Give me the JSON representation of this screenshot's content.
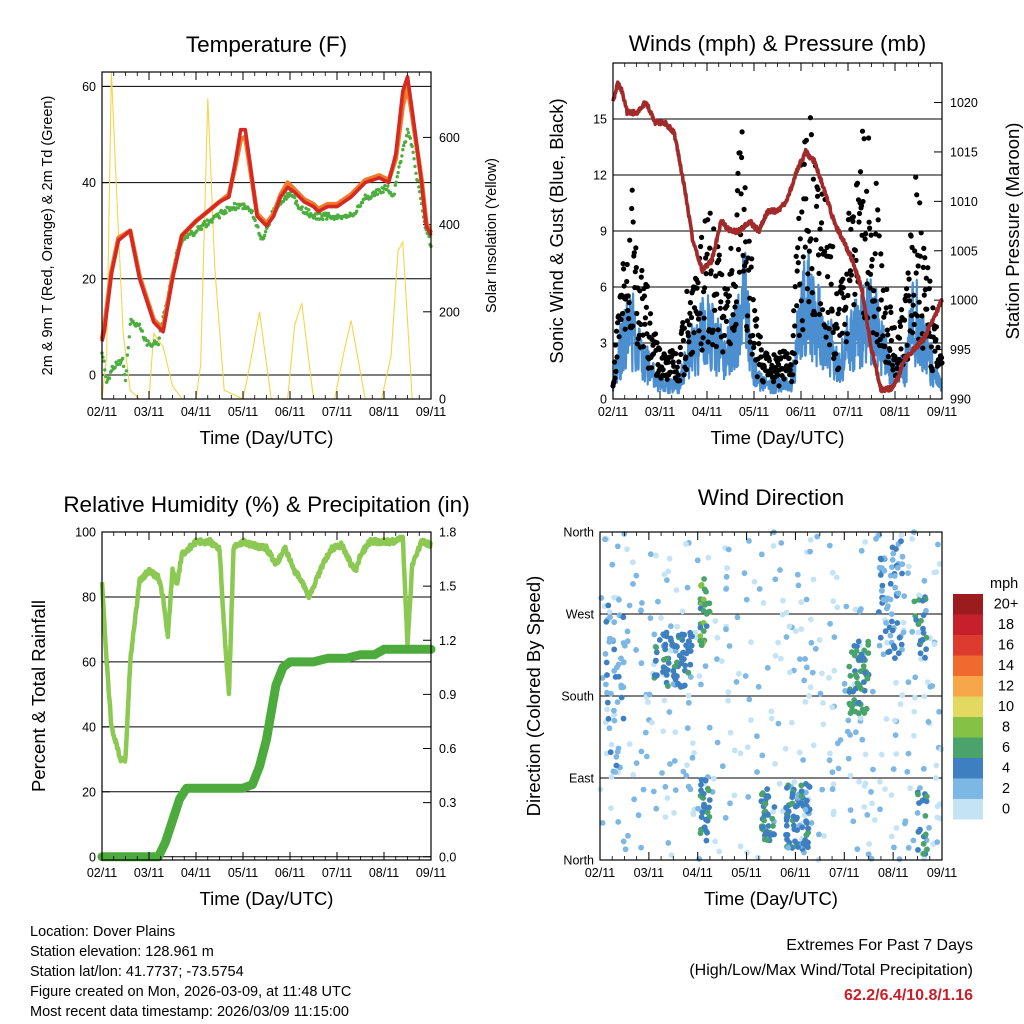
{
  "chart_data": [
    {
      "type": "line",
      "title": "Temperature (F)",
      "xlabel": "Time (Day/UTC)",
      "ylabel": "2m & 9m T (Red, Orange) & 2m Td (Green)",
      "y2label": "Solar Insolation (Yellow)",
      "xticks": [
        "02/11",
        "03/11",
        "04/11",
        "05/11",
        "06/11",
        "07/11",
        "08/11",
        "09/11"
      ],
      "ylim": [
        -5,
        63
      ],
      "yticks": [
        0,
        20,
        40,
        60
      ],
      "y2lim": [
        0,
        750
      ],
      "y2ticks": [
        0,
        200,
        400,
        600
      ],
      "series": [
        {
          "name": "2m T",
          "color": "#d42a23",
          "x": [
            0,
            0.05,
            0.2,
            0.35,
            0.6,
            0.8,
            1.1,
            1.3,
            1.5,
            1.7,
            2,
            2.25,
            2.5,
            2.7,
            2.85,
            2.95,
            3.05,
            3.15,
            3.3,
            3.5,
            3.65,
            3.8,
            3.95,
            4.1,
            4.3,
            4.5,
            4.6,
            4.8,
            5,
            5.3,
            5.6,
            5.9,
            6.1,
            6.25,
            6.4,
            6.5,
            6.6,
            6.8,
            6.9,
            7
          ],
          "y": [
            7,
            9,
            21,
            28,
            30,
            20,
            11,
            9,
            20,
            29,
            32,
            34,
            36,
            37,
            45,
            51,
            51,
            44,
            33,
            31,
            33,
            37,
            39,
            38,
            36,
            35,
            34,
            35,
            35,
            37,
            40,
            41,
            40,
            46,
            59,
            62,
            55,
            40,
            31,
            29
          ]
        },
        {
          "name": "9m T",
          "color": "#f07a28",
          "x": [
            0,
            0.05,
            0.2,
            0.35,
            0.6,
            0.8,
            1.1,
            1.3,
            1.5,
            1.7,
            2,
            2.25,
            2.5,
            2.7,
            2.85,
            2.95,
            3.05,
            3.15,
            3.3,
            3.5,
            3.65,
            3.8,
            3.95,
            4.1,
            4.3,
            4.5,
            4.6,
            4.8,
            5,
            5.3,
            5.6,
            5.9,
            6.1,
            6.25,
            6.4,
            6.5,
            6.6,
            6.8,
            6.9,
            7
          ],
          "y": [
            7.5,
            10,
            21.5,
            28.5,
            30,
            20.5,
            11.5,
            9.5,
            20.5,
            29,
            32,
            34,
            36,
            37.5,
            44,
            49,
            49.5,
            43,
            33.5,
            31.5,
            33.5,
            37.5,
            40,
            38.5,
            36.5,
            35.5,
            34.5,
            35.5,
            35.5,
            37.5,
            40.5,
            41.5,
            40.5,
            45,
            56,
            60,
            54,
            40.5,
            31.5,
            29.5
          ]
        },
        {
          "name": "2m Td",
          "color": "#4cae3e",
          "x": [
            0,
            0.1,
            0.25,
            0.45,
            0.5,
            0.6,
            0.8,
            1,
            1.2,
            1.4,
            1.6,
            1.75,
            2,
            2.3,
            2.6,
            2.8,
            3,
            3.2,
            3.4,
            3.6,
            3.8,
            4,
            4.2,
            4.5,
            4.8,
            5,
            5.3,
            5.6,
            5.9,
            6.05,
            6.2,
            6.35,
            6.5,
            6.6,
            6.75,
            6.9,
            7
          ],
          "y": [
            5,
            -2,
            2,
            3,
            -1,
            11,
            10,
            6,
            7,
            16,
            26,
            28,
            30,
            32,
            34,
            35,
            35,
            34,
            28,
            33,
            36,
            38,
            35,
            33,
            33,
            33,
            33,
            37,
            38,
            39,
            37,
            44,
            51,
            47,
            38,
            30,
            27
          ]
        },
        {
          "name": "Solar Insolation",
          "color": "#f7d448",
          "axis": "y2",
          "x": [
            0,
            0.1,
            0.2,
            0.3,
            0.45,
            0.6,
            0.8,
            1,
            1.1,
            1.3,
            1.5,
            1.7,
            2,
            2.1,
            2.25,
            2.4,
            2.6,
            3,
            3.15,
            3.35,
            3.6,
            3.95,
            4.1,
            4.25,
            4.5,
            4.95,
            5.15,
            5.3,
            5.6,
            5.95,
            6.15,
            6.3,
            6.4,
            6.5,
            6.6,
            7
          ],
          "y": [
            0,
            100,
            750,
            500,
            150,
            20,
            0,
            0,
            150,
            120,
            30,
            0,
            0,
            80,
            690,
            300,
            20,
            0,
            80,
            200,
            0,
            0,
            170,
            220,
            0,
            0,
            110,
            180,
            0,
            0,
            100,
            340,
            360,
            180,
            0,
            0
          ]
        }
      ]
    },
    {
      "type": "line",
      "title": "Winds (mph) & Pressure (mb)",
      "xlabel": "Time (Day/UTC)",
      "ylabel": "Sonic Wind & Gust (Blue, Black)",
      "y2label": "Station Pressure (Maroon)",
      "xticks": [
        "02/11",
        "03/11",
        "04/11",
        "05/11",
        "06/11",
        "07/11",
        "08/11",
        "09/11"
      ],
      "ylim": [
        0,
        18
      ],
      "yticks": [
        0,
        3,
        6,
        9,
        12,
        15
      ],
      "y2lim": [
        990,
        1024
      ],
      "y2ticks": [
        990,
        995,
        1000,
        1005,
        1010,
        1015,
        1020
      ],
      "series": [
        {
          "name": "Station Pressure",
          "color": "#a12a2b",
          "axis": "y2",
          "x": [
            0,
            0.1,
            0.2,
            0.3,
            0.5,
            0.7,
            0.9,
            1.1,
            1.3,
            1.5,
            1.7,
            1.9,
            2.1,
            2.3,
            2.5,
            2.7,
            2.9,
            3.1,
            3.3,
            3.5,
            3.7,
            3.9,
            4.1,
            4.3,
            4.5,
            4.7,
            4.9,
            5.1,
            5.3,
            5.5,
            5.7,
            5.9,
            6.05,
            6.2,
            6.4,
            6.6,
            6.8,
            7
          ],
          "y": [
            1020,
            1022,
            1021,
            1019,
            1019,
            1020,
            1018,
            1018,
            1017,
            1012,
            1006,
            1003,
            1004,
            1008,
            1007,
            1007,
            1008,
            1007,
            1009,
            1009,
            1010,
            1013,
            1015,
            1014,
            1011,
            1008,
            1006,
            1004,
            1001,
            995,
            991,
            991,
            992,
            994,
            995,
            996,
            998,
            1000
          ]
        },
        {
          "name": "Sonic Wind",
          "color": "#4b8fd0",
          "x": [
            0,
            0.2,
            0.4,
            0.6,
            0.8,
            1,
            1.2,
            1.4,
            1.6,
            1.8,
            2,
            2.2,
            2.4,
            2.6,
            2.8,
            3,
            3.2,
            3.4,
            3.6,
            3.8,
            4,
            4.2,
            4.4,
            4.6,
            4.8,
            5,
            5.2,
            5.4,
            5.6,
            5.8,
            6,
            6.2,
            6.4,
            6.6,
            6.8,
            7
          ],
          "y": [
            1,
            4,
            5,
            3,
            2,
            1,
            1,
            1,
            3,
            4,
            5,
            4,
            3,
            5,
            7,
            2,
            1,
            1,
            1,
            1,
            6,
            7,
            5,
            4,
            2,
            4,
            5,
            6,
            5,
            3,
            2,
            2,
            6,
            4,
            2,
            1
          ]
        },
        {
          "name": "Gust",
          "color": "#000000",
          "x": [
            0,
            0.2,
            0.4,
            0.6,
            0.8,
            1,
            1.2,
            1.4,
            1.6,
            1.8,
            2,
            2.2,
            2.4,
            2.6,
            2.8,
            3,
            3.2,
            3.4,
            3.6,
            3.8,
            4,
            4.2,
            4.4,
            4.6,
            4.8,
            5,
            5.2,
            5.4,
            5.6,
            5.8,
            6,
            6.2,
            6.4,
            6.6,
            6.8,
            7
          ],
          "y": [
            2,
            7,
            9,
            6,
            4,
            2,
            2,
            2,
            5,
            6,
            8,
            7,
            6,
            9,
            12,
            4,
            2,
            2,
            2,
            2,
            10,
            12,
            9,
            8,
            4,
            8,
            10,
            12,
            9,
            5,
            3,
            4,
            10,
            7,
            4,
            2
          ]
        }
      ]
    },
    {
      "type": "line",
      "title": "Relative Humidity (%) & Precipitation (in)",
      "xlabel": "Time (Day/UTC)",
      "ylabel": "Percent & Total Rainfall",
      "xticks": [
        "02/11",
        "03/11",
        "04/11",
        "05/11",
        "06/11",
        "07/11",
        "08/11",
        "09/11"
      ],
      "ylim": [
        -1,
        100
      ],
      "yticks": [
        0,
        20,
        40,
        60,
        80,
        100
      ],
      "y2lim": [
        -0.018,
        1.8
      ],
      "y2ticks": [
        "0.0",
        "0.3",
        "0.6",
        "0.9",
        "1.2",
        "1.5",
        "1.8"
      ],
      "series": [
        {
          "name": "Relative Humidity",
          "color": "#8cc952",
          "x": [
            0,
            0.1,
            0.2,
            0.3,
            0.4,
            0.5,
            0.6,
            0.8,
            1,
            1.2,
            1.3,
            1.4,
            1.5,
            1.6,
            1.7,
            2,
            2.3,
            2.5,
            2.6,
            2.7,
            2.8,
            3,
            3.2,
            3.5,
            3.7,
            3.9,
            4.1,
            4.25,
            4.4,
            4.55,
            4.7,
            4.9,
            5.1,
            5.3,
            5.4,
            5.5,
            5.7,
            5.9,
            6.1,
            6.2,
            6.3,
            6.4,
            6.5,
            6.6,
            6.8,
            7
          ],
          "y": [
            84,
            60,
            40,
            35,
            30,
            30,
            60,
            85,
            88,
            86,
            80,
            68,
            88,
            84,
            93,
            97,
            97,
            95,
            70,
            50,
            95,
            97,
            96,
            95,
            90,
            95,
            88,
            85,
            80,
            85,
            90,
            95,
            96,
            90,
            88,
            93,
            97,
            97,
            97,
            97,
            98,
            98,
            65,
            90,
            97,
            96
          ]
        },
        {
          "name": "Total Precipitation",
          "color": "#4dab3e",
          "axis": "y2",
          "x": [
            0,
            0.5,
            1,
            1.2,
            1.35,
            1.5,
            1.65,
            1.8,
            2,
            2.2,
            2.4,
            2.6,
            2.8,
            3,
            3.2,
            3.35,
            3.5,
            3.6,
            3.7,
            3.85,
            4,
            4.2,
            4.5,
            4.8,
            5,
            5.2,
            5.5,
            5.8,
            6,
            6.2,
            6.5,
            6.8,
            7
          ],
          "y": [
            0,
            0,
            0,
            0,
            0.08,
            0.2,
            0.32,
            0.38,
            0.38,
            0.38,
            0.38,
            0.38,
            0.38,
            0.38,
            0.4,
            0.5,
            0.65,
            0.8,
            0.95,
            1.05,
            1.08,
            1.08,
            1.08,
            1.1,
            1.1,
            1.1,
            1.12,
            1.12,
            1.15,
            1.15,
            1.15,
            1.15,
            1.15
          ]
        }
      ]
    },
    {
      "type": "scatter",
      "title": "Wind Direction",
      "xlabel": "Time (Day/UTC)",
      "ylabel": "Direction (Colored By Speed)",
      "xticks": [
        "02/11",
        "03/11",
        "04/11",
        "05/11",
        "06/11",
        "07/11",
        "08/11",
        "09/11"
      ],
      "ylim": [
        0,
        360
      ],
      "yticks": [
        0,
        90,
        180,
        270,
        360
      ],
      "ytick_labels": [
        "North",
        "East",
        "South",
        "West",
        "North"
      ],
      "legend": {
        "title": "mph",
        "placement": "right",
        "labels": [
          "20+",
          "18",
          "16",
          "14",
          "12",
          "10",
          "8",
          "6",
          "4",
          "2",
          "0"
        ],
        "colors": [
          "#9b1b1e",
          "#c7202a",
          "#dd3b2f",
          "#ef6a2c",
          "#f9a64a",
          "#e3d960",
          "#85c145",
          "#4aa36a",
          "#3d7fc1",
          "#7db7e3",
          "#c4e4f6"
        ]
      },
      "clusters": [
        {
          "x_range": [
            0,
            7
          ],
          "dir_range": [
            0,
            360
          ],
          "speed": 1,
          "count": 400
        },
        {
          "x_range": [
            0.1,
            0.5
          ],
          "dir_range": [
            90,
            290
          ],
          "speed": 3,
          "count": 40
        },
        {
          "x_range": [
            1.1,
            1.9
          ],
          "dir_range": [
            190,
            250
          ],
          "speed": 4,
          "count": 80
        },
        {
          "x_range": [
            2.05,
            2.25
          ],
          "dir_range": [
            230,
            310
          ],
          "speed": 6,
          "count": 30
        },
        {
          "x_range": [
            2.05,
            2.25
          ],
          "dir_range": [
            20,
            95
          ],
          "speed": 5,
          "count": 30
        },
        {
          "x_range": [
            3.3,
            3.6
          ],
          "dir_range": [
            20,
            80
          ],
          "speed": 5,
          "count": 40
        },
        {
          "x_range": [
            3.8,
            4.3
          ],
          "dir_range": [
            5,
            85
          ],
          "speed": 4,
          "count": 90
        },
        {
          "x_range": [
            5.1,
            5.5
          ],
          "dir_range": [
            160,
            240
          ],
          "speed": 5,
          "count": 60
        },
        {
          "x_range": [
            5.7,
            6.2
          ],
          "dir_range": [
            220,
            350
          ],
          "speed": 3,
          "count": 60
        },
        {
          "x_range": [
            6.5,
            6.7
          ],
          "dir_range": [
            0,
            80
          ],
          "speed": 5,
          "count": 20
        },
        {
          "x_range": [
            6.4,
            6.7
          ],
          "dir_range": [
            220,
            290
          ],
          "speed": 5,
          "count": 20
        }
      ]
    }
  ],
  "footer": {
    "location": "Location: Dover Plains",
    "elevation": "Station elevation: 128.961 m",
    "latlon": "Station lat/lon: 41.7737; -73.5754",
    "created": "Figure created on Mon, 2026-03-09, at 11:48 UTC",
    "timestamp": "Most recent data timestamp: 2026/03/09 11:15:00"
  },
  "extremes": {
    "heading": "Extremes For Past 7 Days",
    "subheading": "(High/Low/Max Wind/Total Precipitation)",
    "values": "62.2/6.4/10.8/1.16"
  }
}
